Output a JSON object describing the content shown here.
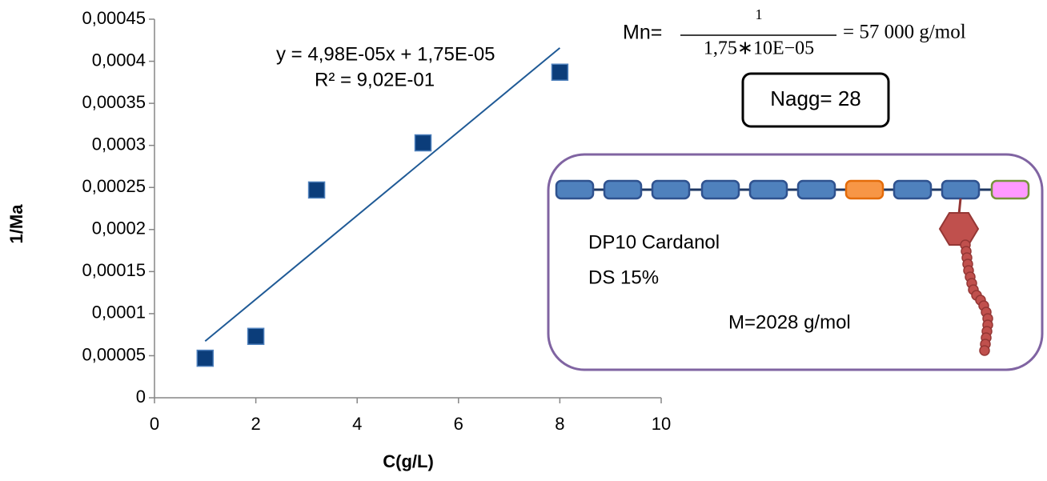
{
  "chart_data": {
    "type": "scatter",
    "x_label": "C(g/L)",
    "y_label": "1/Ma",
    "series": [
      {
        "color": "#0b3d7a",
        "x": [
          1,
          2,
          3.2,
          5.3,
          8
        ],
        "values": [
          4.7e-05,
          7.3e-05,
          0.000247,
          0.000303,
          0.000387
        ]
      }
    ],
    "trendline": {
      "slope": 4.98e-05,
      "intercept": 1.75e-05,
      "color": "#1f5a96",
      "equation": "y = 4,98E-05x + 1,75E-05",
      "r2": "R² = 9,02E-01"
    },
    "xlim": [
      0,
      10
    ],
    "xticks": [
      0,
      2,
      4,
      6,
      8,
      10
    ],
    "ylim": [
      0,
      0.00045
    ],
    "yticks": [
      0,
      {
        "value": 5e-05,
        "label": "0,00005"
      },
      {
        "value": 0.0001,
        "label": "0,0001"
      },
      {
        "value": 0.00015,
        "label": "0,00015"
      },
      {
        "value": 0.0002,
        "label": "0,0002"
      },
      {
        "value": 0.00025,
        "label": "0,00025"
      },
      {
        "value": 0.0003,
        "label": "0,0003"
      },
      {
        "value": 0.00035,
        "label": "0,00035"
      },
      {
        "value": 0.0004,
        "label": "0,0004"
      },
      {
        "value": 0.00045,
        "label": "0,00045"
      }
    ],
    "grid": false,
    "annotations": {
      "mn_prefix": "Mn=",
      "mn_numerator": "1",
      "mn_denominator": "1,75∗10E−05",
      "mn_result": "= 57 000 g/mol",
      "nagg": "Nagg= 28",
      "polymer": "DP10 Cardanol",
      "ds": "DS 15%",
      "mass": "M=2028 g/mol"
    }
  }
}
